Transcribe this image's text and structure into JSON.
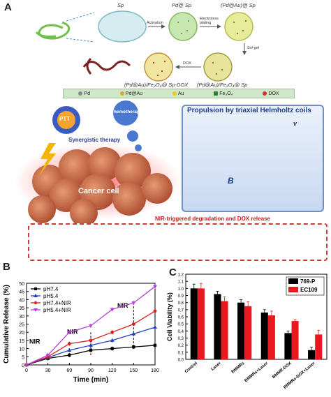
{
  "panel_a": {
    "letter": "A",
    "labels": {
      "sp1": "Sp",
      "pd_sp": "Pd@ Sp",
      "pdau_sp": "(Pd@Au)@ Sp",
      "pdau_fe_sp": "(Pd@Au)/Fe₃O₄@ Sp",
      "pdau_fe_sp_dox": "(Pd@Au)/Fe₃O₄@ Sp-DOX",
      "activation": "Activation",
      "electroless": "Electroless plating",
      "solgel": "Sol-gel",
      "dox_arrow": "DOX"
    },
    "legend": [
      {
        "label": "Pd",
        "color": "#8a8a8a"
      },
      {
        "label": "Pd@Au",
        "color": "#d9a93a"
      },
      {
        "label": "Au",
        "color": "#f2c623"
      },
      {
        "label": "Fe₃O₄",
        "color": "#2e7d32"
      },
      {
        "label": "DOX",
        "color": "#d32f2f"
      }
    ],
    "ptt": "PTT",
    "chemo": "Chemotherapy",
    "synergistic": "Synergistic therapy",
    "cancer_cell": "Cancer cell",
    "propulsion": "Propulsion by triaxial Helmholtz coils",
    "v_label": "v",
    "b_label": "B",
    "degradation": "NIR-triggered degradation and DOX release"
  },
  "panel_b": {
    "letter": "B",
    "chart_data": {
      "type": "line",
      "xlabel": "Time (min)",
      "ylabel": "Cumulative Release (%)",
      "x": [
        0,
        30,
        60,
        90,
        120,
        150,
        180
      ],
      "xlim": [
        0,
        180
      ],
      "ylim": [
        0,
        50
      ],
      "yticks": [
        0,
        5,
        10,
        15,
        20,
        25,
        30,
        35,
        40,
        45,
        50
      ],
      "series": [
        {
          "name": "pH7.4",
          "color": "#000000",
          "marker": "square",
          "values": [
            0,
            4,
            6,
            9,
            10,
            11,
            12
          ]
        },
        {
          "name": "pH5.4",
          "color": "#1f3fbf",
          "marker": "triangle",
          "values": [
            0,
            4.5,
            9,
            12,
            15,
            19,
            23
          ]
        },
        {
          "name": "pH7.4+NIR",
          "color": "#d62020",
          "marker": "circle",
          "values": [
            0,
            5,
            13,
            15,
            20,
            25,
            33
          ]
        },
        {
          "name": "pH5.4+NIR",
          "color": "#b33fd6",
          "marker": "triangle-down",
          "values": [
            0,
            6,
            20,
            24,
            34,
            38,
            48
          ]
        }
      ],
      "annotations": [
        "NIR",
        "NIR",
        "NIR"
      ]
    }
  },
  "panel_c": {
    "letter": "C",
    "chart_data": {
      "type": "bar",
      "ylabel": "Cell Viability (%)",
      "ylim": [
        0,
        1.2
      ],
      "yticks": [
        0.0,
        0.1,
        0.2,
        0.3,
        0.4,
        0.5,
        0.6,
        0.7,
        0.8,
        0.9,
        1.0,
        1.1,
        1.2
      ],
      "categories": [
        "Control",
        "Laser",
        "BMMRs",
        "BMMRs+Laser",
        "BMMR-DOX",
        "BMMRs-DOX+Laser"
      ],
      "series": [
        {
          "name": "769-P",
          "color": "#000000",
          "values": [
            1.0,
            0.92,
            0.8,
            0.66,
            0.37,
            0.13
          ],
          "errors": [
            0.06,
            0.04,
            0.04,
            0.04,
            0.03,
            0.04
          ]
        },
        {
          "name": "EC109",
          "color": "#e8191f",
          "values": [
            1.0,
            0.82,
            0.75,
            0.62,
            0.54,
            0.35
          ],
          "errors": [
            0.07,
            0.06,
            0.06,
            0.06,
            0.02,
            0.06
          ]
        }
      ]
    }
  }
}
